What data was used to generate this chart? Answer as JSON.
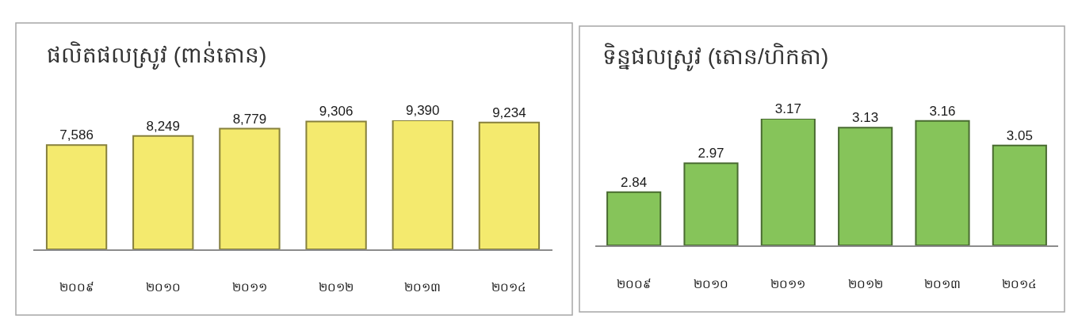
{
  "chart_data": [
    {
      "type": "bar",
      "title": "ផលិតផលស្រូវ (ពាន់តោន)",
      "categories": [
        "២០០៩",
        "២០១០",
        "២០១១",
        "២០១២",
        "២០១៣",
        "២០១៤"
      ],
      "values": [
        7586,
        8249,
        8779,
        9306,
        9390,
        9234
      ],
      "value_labels": [
        "7,586",
        "8,249",
        "8,779",
        "9,306",
        "9,390",
        "9,234"
      ],
      "color": "#f4ea6e",
      "ylim": [
        0,
        9390
      ],
      "tick_labels": "x"
    },
    {
      "type": "bar",
      "title": "ទិន្នផលស្រូវ (តោន/ហិកតា)",
      "categories": [
        "២០០៩",
        "២០១០",
        "២០១១",
        "២០១២",
        "២០១៣",
        "២០១៤"
      ],
      "values": [
        2.84,
        2.97,
        3.17,
        3.13,
        3.16,
        3.05
      ],
      "data_labels": true,
      "color": "#86c45a",
      "ylim": [
        2.6,
        3.17
      ],
      "tick_labels": "x"
    }
  ]
}
